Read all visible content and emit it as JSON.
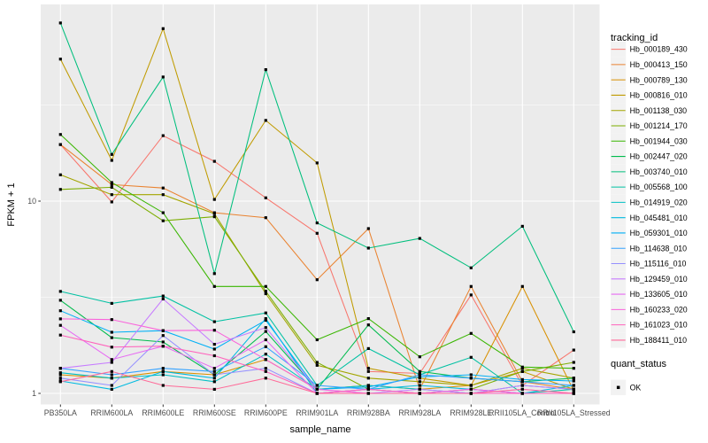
{
  "chart_data": {
    "type": "line",
    "xlabel": "sample_name",
    "ylabel": "FPKM + 1",
    "y_scale": "log10",
    "ylim": [
      0.88,
      104
    ],
    "grid": "on",
    "legend_position": "right",
    "point_shape": "filled-square",
    "point_color": "#000000",
    "y_ticks": [
      {
        "label": "10",
        "value": 10
      },
      {
        "label": "1",
        "value": 1
      }
    ],
    "y_minor_ticks": [
      3.162,
      31.62
    ],
    "categories": [
      "PB350LA",
      "RRIM600LA",
      "RRIM600LE",
      "RRIM600SE",
      "RRIM600PE",
      "RRIM901LA",
      "RRIM928BA",
      "RRIM928LA",
      "RRIM928LE",
      "RRII105LA_Control",
      "RRII105LA_Stressed"
    ],
    "series": [
      {
        "name": "Hb_000189_430",
        "color": "#F8766D",
        "values": [
          19.7,
          9.9,
          21.9,
          16.1,
          10.4,
          6.8,
          1.3,
          1.27,
          3.25,
          1.1,
          1.68
        ]
      },
      {
        "name": "Hb_000413_150",
        "color": "#EA8331",
        "values": [
          19.7,
          12.2,
          11.7,
          8.7,
          8.2,
          3.9,
          7.2,
          1.05,
          3.6,
          1.15,
          1.05
        ]
      },
      {
        "name": "Hb_000789_130",
        "color": "#D89000",
        "values": [
          1.25,
          1.2,
          1.3,
          1.25,
          1.5,
          1.05,
          1.1,
          1.05,
          1.1,
          3.6,
          1.03
        ]
      },
      {
        "name": "Hb_000816_010",
        "color": "#C09B00",
        "values": [
          54.8,
          16.3,
          78.9,
          10.2,
          26.3,
          15.8,
          1.35,
          1.2,
          1.1,
          1.3,
          1.05
        ]
      },
      {
        "name": "Hb_001138_030",
        "color": "#A3A500",
        "values": [
          13.7,
          10.8,
          10.8,
          8.6,
          3.3,
          1.4,
          1.2,
          1.15,
          1.1,
          1.35,
          1.2
        ]
      },
      {
        "name": "Hb_001214_170",
        "color": "#7CAE00",
        "values": [
          11.5,
          11.8,
          7.9,
          8.3,
          3.4,
          1.45,
          1.05,
          1.0,
          1.05,
          1.3,
          1.45
        ]
      },
      {
        "name": "Hb_001944_030",
        "color": "#39B600",
        "values": [
          22.2,
          12.5,
          8.7,
          3.6,
          3.6,
          1.9,
          2.45,
          1.55,
          2.05,
          1.37,
          1.35
        ]
      },
      {
        "name": "Hb_002447_020",
        "color": "#00BB4E",
        "values": [
          3.05,
          1.95,
          1.85,
          1.25,
          2.1,
          1.05,
          2.27,
          1.3,
          1.2,
          1.15,
          1.2
        ]
      },
      {
        "name": "Hb_003740_010",
        "color": "#00BF7D",
        "values": [
          84.5,
          17.5,
          44.2,
          4.2,
          48.3,
          7.7,
          5.7,
          6.4,
          4.5,
          7.4,
          2.09
        ]
      },
      {
        "name": "Hb_005568_100",
        "color": "#00C1A3",
        "values": [
          3.39,
          2.94,
          3.21,
          2.36,
          2.62,
          1.1,
          1.71,
          1.25,
          1.54,
          1.0,
          1.05
        ]
      },
      {
        "name": "Hb_014919_020",
        "color": "#00BFC4",
        "values": [
          1.28,
          1.2,
          1.25,
          1.15,
          1.6,
          1.05,
          1.1,
          1.05,
          1.0,
          1.1,
          1.05
        ]
      },
      {
        "name": "Hb_045481_010",
        "color": "#00BAE0",
        "values": [
          1.16,
          1.05,
          1.3,
          1.2,
          2.45,
          1.0,
          1.05,
          1.1,
          1.05,
          1.0,
          1.1
        ]
      },
      {
        "name": "Hb_059301_010",
        "color": "#00B0F6",
        "values": [
          2.69,
          2.08,
          2.12,
          1.7,
          2.4,
          1.05,
          1.08,
          1.22,
          1.25,
          1.18,
          1.16
        ]
      },
      {
        "name": "Hb_114638_010",
        "color": "#35A2FF",
        "values": [
          1.35,
          1.25,
          1.35,
          1.3,
          1.75,
          1.1,
          1.05,
          1.25,
          1.2,
          1.15,
          1.1
        ]
      },
      {
        "name": "Hb_115116_010",
        "color": "#9590FF",
        "values": [
          1.2,
          1.1,
          2.0,
          1.25,
          1.35,
          1.0,
          1.05,
          1.0,
          1.05,
          1.0,
          1.0
        ]
      },
      {
        "name": "Hb_129459_010",
        "color": "#C77CFF",
        "values": [
          1.35,
          1.45,
          3.1,
          1.8,
          2.2,
          1.05,
          1.0,
          1.05,
          1.0,
          1.1,
          1.05
        ]
      },
      {
        "name": "Hb_133605_010",
        "color": "#E76BF3",
        "values": [
          2.26,
          1.5,
          1.76,
          1.35,
          1.9,
          1.0,
          1.05,
          1.0,
          1.0,
          1.05,
          1.0
        ]
      },
      {
        "name": "Hb_160233_020",
        "color": "#FA62DB",
        "values": [
          2.44,
          2.42,
          2.12,
          2.13,
          1.5,
          1.05,
          1.0,
          1.0,
          1.05,
          1.0,
          1.0
        ]
      },
      {
        "name": "Hb_161023_010",
        "color": "#FF62BC",
        "values": [
          2.01,
          1.74,
          1.76,
          1.57,
          1.3,
          1.0,
          1.05,
          1.0,
          1.0,
          1.0,
          1.0
        ]
      },
      {
        "name": "Hb_188411_010",
        "color": "#FF6A98",
        "values": [
          1.15,
          1.3,
          1.1,
          1.05,
          1.2,
          1.0,
          1.0,
          1.0,
          1.0,
          1.05,
          1.0
        ]
      }
    ]
  },
  "legend": {
    "tracking_title": "tracking_id",
    "quant_title": "quant_status",
    "quant_items": [
      {
        "label": "OK",
        "marker": "black-square"
      }
    ]
  },
  "colors": {
    "page_bg": "#FFFFFF",
    "panel_bg": "#EBEBEB",
    "grid": "#FFFFFF",
    "tick": "#333333",
    "tick_label": "#4D4D4D",
    "text": "#000000",
    "legend_key_bg": "#F2F2F2"
  }
}
